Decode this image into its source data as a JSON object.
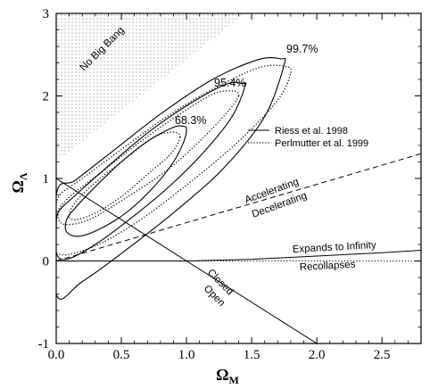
{
  "chart_data": {
    "type": "line",
    "title": "",
    "xlabel": "Ω",
    "xlabel_sub": "M",
    "ylabel": "Ω",
    "ylabel_sub": "Λ",
    "xlim": [
      0.0,
      2.8
    ],
    "ylim": [
      -1.0,
      3.0
    ],
    "xticks": [
      0.0,
      0.5,
      1.0,
      1.5,
      2.0,
      2.5
    ],
    "xtick_labels": [
      "0.0",
      "0.5",
      "1.0",
      "1.5",
      "2.0",
      "2.5"
    ],
    "yticks": [
      -1,
      0,
      1,
      2,
      3
    ],
    "ytick_labels": [
      "-1",
      "0",
      "1",
      "2",
      "3"
    ],
    "grid": false,
    "legend": {
      "position": "right",
      "entries": [
        {
          "label": "Riess et al. 1998",
          "style": "solid"
        },
        {
          "label": "Perlmutter et al. 1999",
          "style": "dotted"
        }
      ]
    },
    "series": [
      {
        "name": "Riess et al. 1998",
        "style": "solid",
        "contours": [
          {
            "level": "68.3%",
            "points": [
              [
                1.0,
                1.6
              ],
              [
                0.98,
                1.63
              ],
              [
                0.9,
                1.62
              ],
              [
                0.7,
                1.45
              ],
              [
                0.5,
                1.2
              ],
              [
                0.3,
                0.9
              ],
              [
                0.15,
                0.65
              ],
              [
                0.08,
                0.5
              ],
              [
                0.08,
                0.35
              ],
              [
                0.18,
                0.3
              ],
              [
                0.35,
                0.4
              ],
              [
                0.55,
                0.6
              ],
              [
                0.75,
                0.9
              ],
              [
                0.9,
                1.2
              ],
              [
                0.98,
                1.45
              ],
              [
                1.0,
                1.6
              ]
            ]
          },
          {
            "level": "95.4%",
            "points": [
              [
                1.45,
                2.12
              ],
              [
                1.43,
                2.15
              ],
              [
                1.3,
                2.14
              ],
              [
                1.0,
                1.88
              ],
              [
                0.7,
                1.55
              ],
              [
                0.4,
                1.15
              ],
              [
                0.15,
                0.8
              ],
              [
                0.02,
                0.6
              ],
              [
                0.0,
                0.4
              ],
              [
                0.0,
                0.1
              ],
              [
                0.08,
                0.02
              ],
              [
                0.3,
                0.2
              ],
              [
                0.6,
                0.55
              ],
              [
                0.9,
                0.95
              ],
              [
                1.15,
                1.35
              ],
              [
                1.35,
                1.75
              ],
              [
                1.45,
                2.12
              ]
            ]
          },
          {
            "level": "99.7%",
            "points": [
              [
                1.75,
                2.38
              ],
              [
                1.72,
                2.45
              ],
              [
                1.55,
                2.44
              ],
              [
                1.2,
                2.2
              ],
              [
                0.8,
                1.78
              ],
              [
                0.45,
                1.35
              ],
              [
                0.15,
                0.98
              ],
              [
                0.0,
                0.8
              ],
              [
                0.0,
                -0.4
              ],
              [
                0.2,
                -0.25
              ],
              [
                0.55,
                0.15
              ],
              [
                0.95,
                0.65
              ],
              [
                1.3,
                1.15
              ],
              [
                1.6,
                1.75
              ],
              [
                1.75,
                2.38
              ]
            ]
          }
        ]
      },
      {
        "name": "Perlmutter et al. 1999",
        "style": "dotted",
        "contours": [
          {
            "level": "68.3%",
            "points": [
              [
                0.95,
                1.5
              ],
              [
                0.9,
                1.56
              ],
              [
                0.75,
                1.5
              ],
              [
                0.5,
                1.2
              ],
              [
                0.3,
                0.95
              ],
              [
                0.15,
                0.72
              ],
              [
                0.1,
                0.55
              ],
              [
                0.15,
                0.5
              ],
              [
                0.3,
                0.58
              ],
              [
                0.5,
                0.78
              ],
              [
                0.7,
                1.05
              ],
              [
                0.88,
                1.3
              ],
              [
                0.95,
                1.5
              ]
            ]
          },
          {
            "level": "95.4%",
            "points": [
              [
                1.4,
                2.0
              ],
              [
                1.35,
                2.06
              ],
              [
                1.2,
                2.02
              ],
              [
                0.95,
                1.78
              ],
              [
                0.65,
                1.45
              ],
              [
                0.35,
                1.08
              ],
              [
                0.12,
                0.8
              ],
              [
                0.02,
                0.62
              ],
              [
                0.05,
                0.45
              ],
              [
                0.25,
                0.5
              ],
              [
                0.55,
                0.78
              ],
              [
                0.85,
                1.1
              ],
              [
                1.1,
                1.45
              ],
              [
                1.3,
                1.78
              ],
              [
                1.4,
                2.0
              ]
            ]
          },
          {
            "level": "99.7%",
            "points": [
              [
                1.8,
                2.28
              ],
              [
                1.75,
                2.36
              ],
              [
                1.55,
                2.34
              ],
              [
                1.2,
                2.08
              ],
              [
                0.85,
                1.75
              ],
              [
                0.5,
                1.35
              ],
              [
                0.2,
                1.0
              ],
              [
                0.02,
                0.78
              ],
              [
                0.0,
                0.5
              ],
              [
                0.0,
                0.1
              ],
              [
                0.25,
                0.15
              ],
              [
                0.6,
                0.45
              ],
              [
                1.0,
                0.92
              ],
              [
                1.4,
                1.45
              ],
              [
                1.7,
                1.95
              ],
              [
                1.8,
                2.28
              ]
            ]
          }
        ]
      }
    ],
    "reference_lines": [
      {
        "name": "Closed/Open boundary",
        "style": "solid",
        "points": [
          [
            0.0,
            1.0
          ],
          [
            2.0,
            -1.0
          ]
        ]
      },
      {
        "name": "Accelerating/Decelerating boundary",
        "style": "dashed",
        "points": [
          [
            0.0,
            0.0
          ],
          [
            2.8,
            1.3
          ]
        ]
      },
      {
        "name": "Expands to Infinity / Recollapses boundary (upper)",
        "style": "solid",
        "points": [
          [
            0.0,
            0.0
          ],
          [
            1.0,
            0.0
          ],
          [
            1.5,
            0.02
          ],
          [
            2.0,
            0.06
          ],
          [
            2.5,
            0.1
          ],
          [
            2.8,
            0.13
          ]
        ]
      },
      {
        "name": "Expands to Infinity / Recollapses boundary (lower)",
        "style": "dotted",
        "points": [
          [
            1.0,
            0.0
          ],
          [
            2.8,
            0.0
          ]
        ]
      }
    ],
    "no_big_bang_region": [
      [
        0.0,
        3.0
      ],
      [
        1.45,
        3.0
      ],
      [
        0.0,
        1.2
      ]
    ],
    "annotations": {
      "no_big_bang": "No Big Bang",
      "accelerating": "Accelerating",
      "decelerating": "Decelerating",
      "expands": "Expands to Infinity",
      "recollapses": "Recollapses",
      "closed": "Closed",
      "open": "Open",
      "conf_68": "68.3%",
      "conf_95": "95.4%",
      "conf_99": "99.7%"
    }
  }
}
